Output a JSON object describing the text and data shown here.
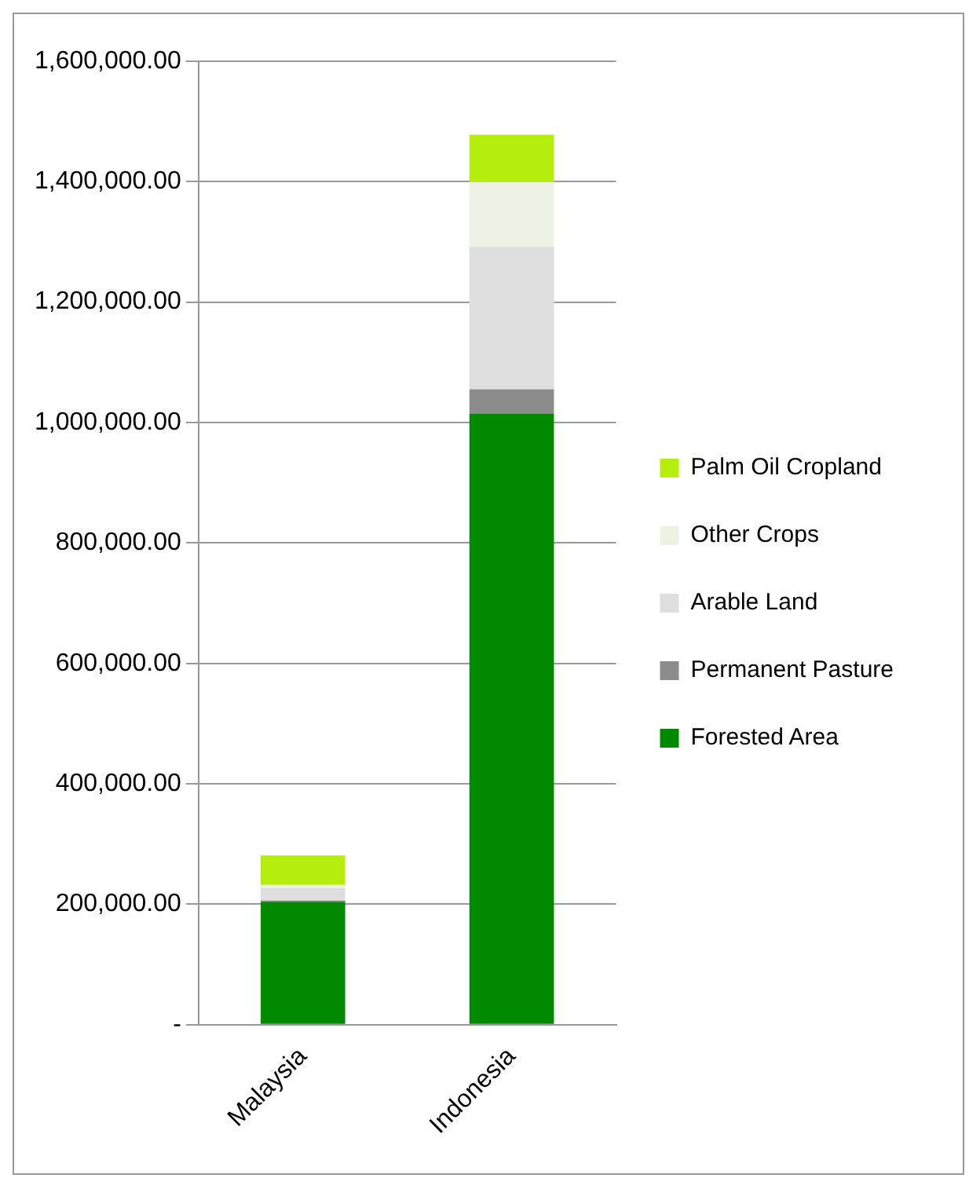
{
  "chart_data": {
    "type": "bar",
    "stacked": true,
    "categories": [
      "Malaysia",
      "Indonesia"
    ],
    "series": [
      {
        "name": "Forested Area",
        "color": "#008a00",
        "values": [
          204000,
          1015000
        ]
      },
      {
        "name": "Permanent Pasture",
        "color": "#8c8c8c",
        "values": [
          2000,
          40000
        ]
      },
      {
        "name": "Arable Land",
        "color": "#dedede",
        "values": [
          21000,
          237000
        ]
      },
      {
        "name": "Other Crops",
        "color": "#eef2e4",
        "values": [
          5000,
          107000
        ]
      },
      {
        "name": "Palm Oil Cropland",
        "color": "#b4ee0a",
        "values": [
          49000,
          79000
        ]
      }
    ],
    "ylim": [
      0,
      1600000
    ],
    "yticks": [
      {
        "value": 0,
        "label": "-"
      },
      {
        "value": 200000,
        "label": "200,000.00"
      },
      {
        "value": 400000,
        "label": "400,000.00"
      },
      {
        "value": 600000,
        "label": "600,000.00"
      },
      {
        "value": 800000,
        "label": "800,000.00"
      },
      {
        "value": 1000000,
        "label": "1,000,000.00"
      },
      {
        "value": 1200000,
        "label": "1,200,000.00"
      },
      {
        "value": 1400000,
        "label": "1,400,000.00"
      },
      {
        "value": 1600000,
        "label": "1,600,000.00"
      }
    ],
    "grid": "y",
    "legend": "right"
  }
}
